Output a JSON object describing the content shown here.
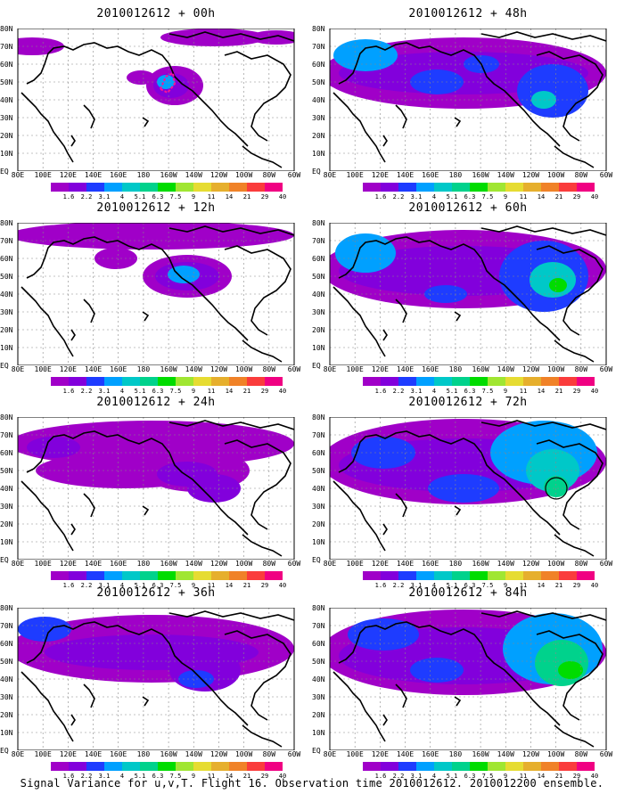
{
  "panels": [
    {
      "title": "2010012612 + 00h"
    },
    {
      "title": "2010012612 + 48h"
    },
    {
      "title": "2010012612 + 12h"
    },
    {
      "title": "2010012612 + 60h"
    },
    {
      "title": "2010012612 + 24h"
    },
    {
      "title": "2010012612 + 72h"
    },
    {
      "title": "2010012612 + 36h"
    },
    {
      "title": "2010012612 + 84h"
    }
  ],
  "lat_labels": [
    "80N",
    "70N",
    "60N",
    "50N",
    "40N",
    "30N",
    "20N",
    "10N",
    "EQ"
  ],
  "lon_labels": [
    "80E",
    "100E",
    "120E",
    "140E",
    "160E",
    "180",
    "160W",
    "140W",
    "120W",
    "100W",
    "80W",
    "60W"
  ],
  "colorbar": {
    "labels": [
      "1.6",
      "2.2",
      "3.1",
      "4",
      "5.1",
      "6.3",
      "7.5",
      "9",
      "11",
      "14",
      "21",
      "29",
      "40"
    ],
    "colors": [
      "#a000c8",
      "#8200dc",
      "#1e3cff",
      "#00a0ff",
      "#00c8c8",
      "#00d28c",
      "#00dc00",
      "#a0e632",
      "#e6dc32",
      "#e6af2d",
      "#f08228",
      "#fa3c3c",
      "#f00082"
    ]
  },
  "caption": "Signal Variance for u,v,T. Flight 16. Observation time 2010012612. 2010012200 ensemble."
}
